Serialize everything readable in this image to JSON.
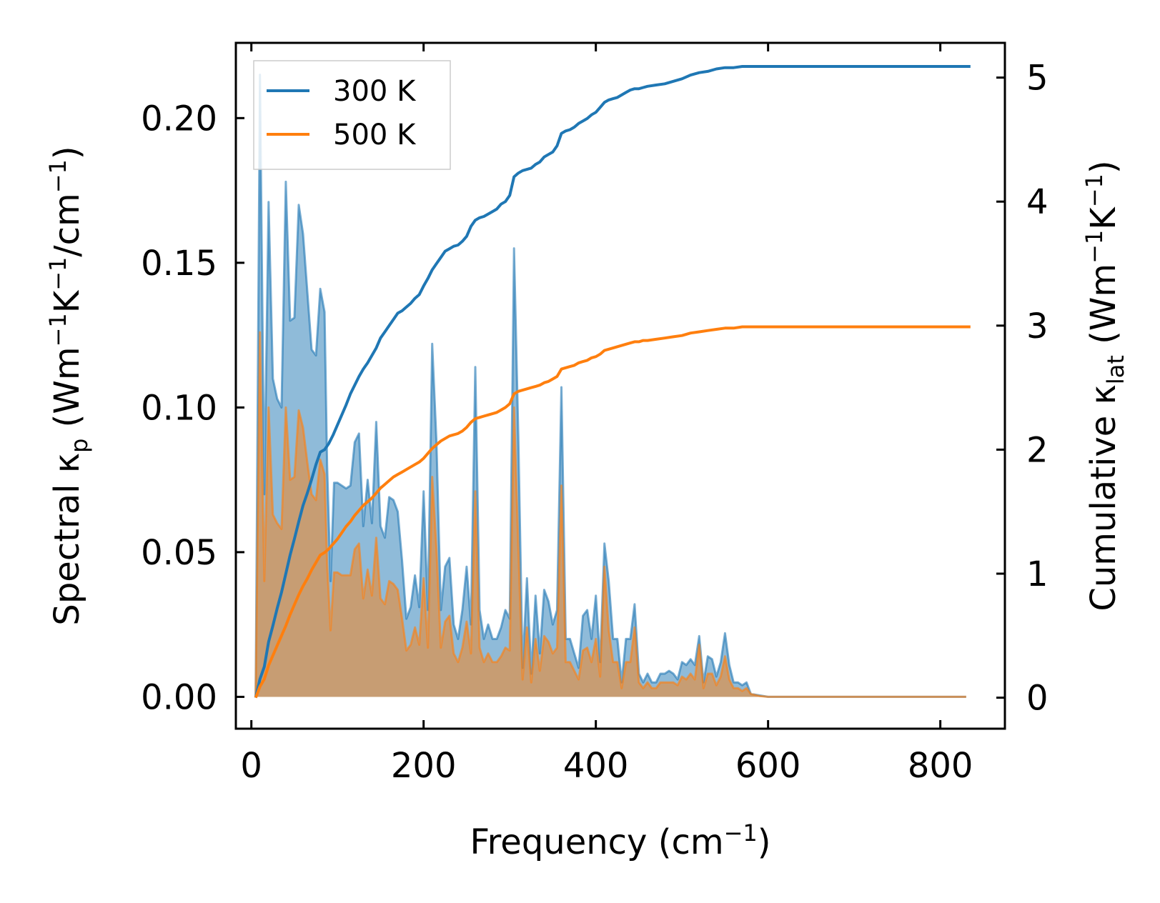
{
  "chart_data": {
    "type": "line+area",
    "xlabel": "Frequency (cm",
    "xlabel_sup": "−1",
    "xlabel_tail": ")",
    "ylabel_left": "Spectral κ",
    "ylabel_left_sub": "p",
    "ylabel_left_tail": " (Wm",
    "ylabel_left_sup1": "−1",
    "ylabel_left_mid": "K",
    "ylabel_left_sup2": "−1",
    "ylabel_left_mid2": "/cm",
    "ylabel_left_sup3": "−1",
    "ylabel_left_end": ")",
    "ylabel_right": "Cumulative κ",
    "ylabel_right_sub": "lat",
    "ylabel_right_tail": " (Wm",
    "ylabel_right_sup1": "−1",
    "ylabel_right_mid": "K",
    "ylabel_right_sup2": "−1",
    "ylabel_right_end": ")",
    "xlim": [
      -18,
      875
    ],
    "ylim_left": [
      -0.011,
      0.226
    ],
    "ylim_right": [
      -0.25,
      5.28
    ],
    "xticks": [
      0,
      200,
      400,
      600,
      800
    ],
    "xtick_labels": [
      "0",
      "200",
      "400",
      "600",
      "800"
    ],
    "yticks_left": [
      0.0,
      0.05,
      0.1,
      0.15,
      0.2
    ],
    "ytick_labels_left": [
      "0.00",
      "0.05",
      "0.10",
      "0.15",
      "0.20"
    ],
    "yticks_right": [
      0,
      1,
      2,
      3,
      4,
      5
    ],
    "ytick_labels_right": [
      "0",
      "1",
      "2",
      "3",
      "4",
      "5"
    ],
    "legend": {
      "placement": "top-left",
      "entries": [
        {
          "label": "300 K",
          "color": "#1f77b4"
        },
        {
          "label": "500 K",
          "color": "#ff7f0e"
        }
      ]
    },
    "series": [
      {
        "name": "300 K",
        "color": "#1f77b4",
        "spectral": {
          "x": [
            5,
            10,
            15,
            20,
            25,
            30,
            35,
            40,
            45,
            50,
            55,
            60,
            65,
            70,
            75,
            80,
            85,
            88,
            92,
            96,
            100,
            105,
            110,
            115,
            120,
            125,
            130,
            135,
            140,
            145,
            150,
            155,
            160,
            165,
            170,
            175,
            180,
            185,
            190,
            195,
            200,
            205,
            210,
            215,
            220,
            225,
            230,
            235,
            240,
            245,
            250,
            255,
            260,
            265,
            270,
            275,
            280,
            285,
            290,
            295,
            300,
            305,
            310,
            315,
            320,
            325,
            330,
            335,
            340,
            345,
            350,
            355,
            360,
            365,
            370,
            375,
            380,
            385,
            390,
            395,
            400,
            405,
            410,
            415,
            420,
            425,
            430,
            435,
            440,
            445,
            450,
            455,
            460,
            465,
            470,
            475,
            480,
            485,
            490,
            495,
            500,
            505,
            510,
            515,
            520,
            525,
            530,
            535,
            540,
            545,
            550,
            555,
            560,
            565,
            570,
            575,
            580,
            590,
            600,
            650,
            700,
            750,
            800,
            830
          ],
          "y": [
            0,
            0.215,
            0.07,
            0.171,
            0.11,
            0.103,
            0.1,
            0.178,
            0.13,
            0.131,
            0.17,
            0.16,
            0.14,
            0.12,
            0.118,
            0.141,
            0.133,
            0.08,
            0.04,
            0.074,
            0.074,
            0.073,
            0.072,
            0.073,
            0.088,
            0.091,
            0.059,
            0.075,
            0.06,
            0.095,
            0.059,
            0.055,
            0.069,
            0.068,
            0.064,
            0.047,
            0.027,
            0.031,
            0.042,
            0.031,
            0.071,
            0.03,
            0.122,
            0.088,
            0.03,
            0.045,
            0.048,
            0.025,
            0.02,
            0.03,
            0.045,
            0.025,
            0.114,
            0.03,
            0.02,
            0.025,
            0.02,
            0.02,
            0.024,
            0.03,
            0.027,
            0.155,
            0.09,
            0.01,
            0.041,
            0.008,
            0.035,
            0.015,
            0.037,
            0.033,
            0.025,
            0.03,
            0.107,
            0.02,
            0.02,
            0.015,
            0.01,
            0.028,
            0.03,
            0.02,
            0.035,
            0.012,
            0.053,
            0.04,
            0.02,
            0.02,
            0.005,
            0.02,
            0.02,
            0.032,
            0.008,
            0.005,
            0.008,
            0.005,
            0.005,
            0.008,
            0.008,
            0.009,
            0.008,
            0.006,
            0.012,
            0.011,
            0.013,
            0.011,
            0.021,
            0.005,
            0.014,
            0.013,
            0.007,
            0.012,
            0.022,
            0.011,
            0.005,
            0.005,
            0.004,
            0.005,
            0.001,
            0.0005,
            0,
            0,
            0,
            0,
            0,
            0
          ]
        },
        "cumulative": {
          "x": [
            5,
            10,
            15,
            20,
            25,
            30,
            35,
            40,
            45,
            50,
            55,
            60,
            65,
            70,
            75,
            80,
            85,
            90,
            95,
            100,
            105,
            110,
            115,
            120,
            125,
            130,
            135,
            140,
            145,
            150,
            155,
            160,
            165,
            170,
            175,
            180,
            185,
            190,
            195,
            200,
            205,
            210,
            215,
            220,
            225,
            230,
            235,
            240,
            245,
            250,
            255,
            260,
            265,
            270,
            275,
            280,
            285,
            290,
            295,
            300,
            305,
            310,
            315,
            320,
            325,
            330,
            335,
            340,
            345,
            350,
            355,
            360,
            365,
            370,
            375,
            380,
            385,
            390,
            395,
            400,
            405,
            410,
            415,
            420,
            425,
            430,
            435,
            440,
            445,
            450,
            455,
            460,
            470,
            480,
            490,
            500,
            510,
            520,
            530,
            540,
            550,
            560,
            570,
            580,
            600,
            650,
            700,
            750,
            800,
            835
          ],
          "y": [
            0,
            0.15,
            0.25,
            0.45,
            0.58,
            0.72,
            0.85,
            1.0,
            1.15,
            1.28,
            1.42,
            1.55,
            1.65,
            1.76,
            1.88,
            1.98,
            2.0,
            2.05,
            2.12,
            2.2,
            2.28,
            2.36,
            2.45,
            2.52,
            2.59,
            2.65,
            2.7,
            2.76,
            2.82,
            2.9,
            2.95,
            3.0,
            3.05,
            3.1,
            3.12,
            3.15,
            3.18,
            3.22,
            3.25,
            3.32,
            3.38,
            3.45,
            3.5,
            3.55,
            3.6,
            3.62,
            3.64,
            3.65,
            3.68,
            3.72,
            3.8,
            3.85,
            3.87,
            3.88,
            3.9,
            3.92,
            3.94,
            3.98,
            4.0,
            4.05,
            4.2,
            4.23,
            4.25,
            4.26,
            4.27,
            4.3,
            4.32,
            4.36,
            4.38,
            4.4,
            4.45,
            4.55,
            4.57,
            4.58,
            4.6,
            4.63,
            4.65,
            4.67,
            4.7,
            4.72,
            4.76,
            4.8,
            4.82,
            4.83,
            4.84,
            4.86,
            4.88,
            4.9,
            4.91,
            4.91,
            4.92,
            4.93,
            4.94,
            4.95,
            4.97,
            4.99,
            5.02,
            5.04,
            5.05,
            5.07,
            5.08,
            5.08,
            5.09,
            5.09,
            5.09,
            5.09,
            5.09,
            5.09,
            5.09,
            5.09
          ]
        }
      },
      {
        "name": "500 K",
        "color": "#ff7f0e",
        "spectral": {
          "x": [
            5,
            10,
            15,
            20,
            25,
            30,
            35,
            40,
            45,
            50,
            55,
            60,
            65,
            70,
            75,
            80,
            85,
            88,
            92,
            96,
            100,
            105,
            110,
            115,
            120,
            125,
            130,
            135,
            140,
            145,
            150,
            155,
            160,
            165,
            170,
            175,
            180,
            185,
            190,
            195,
            200,
            205,
            210,
            215,
            220,
            225,
            230,
            235,
            240,
            245,
            250,
            255,
            260,
            265,
            270,
            275,
            280,
            285,
            290,
            295,
            300,
            305,
            310,
            315,
            320,
            325,
            330,
            335,
            340,
            345,
            350,
            355,
            360,
            365,
            370,
            375,
            380,
            385,
            390,
            395,
            400,
            405,
            410,
            415,
            420,
            425,
            430,
            435,
            440,
            445,
            450,
            455,
            460,
            465,
            470,
            475,
            480,
            485,
            490,
            495,
            500,
            505,
            510,
            515,
            520,
            525,
            530,
            535,
            540,
            545,
            550,
            555,
            560,
            565,
            570,
            575,
            580,
            590,
            600,
            650,
            700,
            750,
            800,
            830
          ],
          "y": [
            0,
            0.126,
            0.04,
            0.1,
            0.063,
            0.06,
            0.058,
            0.1,
            0.075,
            0.076,
            0.099,
            0.093,
            0.081,
            0.07,
            0.068,
            0.082,
            0.077,
            0.046,
            0.023,
            0.043,
            0.043,
            0.042,
            0.042,
            0.042,
            0.051,
            0.053,
            0.034,
            0.044,
            0.035,
            0.055,
            0.034,
            0.032,
            0.04,
            0.039,
            0.037,
            0.027,
            0.016,
            0.018,
            0.024,
            0.018,
            0.041,
            0.017,
            0.076,
            0.051,
            0.017,
            0.026,
            0.028,
            0.015,
            0.012,
            0.017,
            0.026,
            0.015,
            0.071,
            0.017,
            0.012,
            0.015,
            0.012,
            0.012,
            0.014,
            0.017,
            0.016,
            0.1,
            0.052,
            0.006,
            0.024,
            0.005,
            0.02,
            0.009,
            0.021,
            0.019,
            0.015,
            0.017,
            0.073,
            0.012,
            0.012,
            0.009,
            0.006,
            0.016,
            0.017,
            0.012,
            0.02,
            0.007,
            0.045,
            0.023,
            0.012,
            0.012,
            0.003,
            0.012,
            0.012,
            0.024,
            0.005,
            0.003,
            0.005,
            0.003,
            0.003,
            0.005,
            0.005,
            0.005,
            0.005,
            0.004,
            0.007,
            0.006,
            0.008,
            0.006,
            0.018,
            0.003,
            0.008,
            0.008,
            0.004,
            0.007,
            0.014,
            0.006,
            0.003,
            0.003,
            0.002,
            0.003,
            0.001,
            0.0003,
            0,
            0,
            0,
            0,
            0,
            0
          ]
        },
        "cumulative": {
          "x": [
            5,
            10,
            15,
            20,
            25,
            30,
            35,
            40,
            45,
            50,
            55,
            60,
            65,
            70,
            75,
            80,
            85,
            90,
            95,
            100,
            105,
            110,
            115,
            120,
            125,
            130,
            135,
            140,
            145,
            150,
            155,
            160,
            165,
            170,
            175,
            180,
            185,
            190,
            195,
            200,
            205,
            210,
            215,
            220,
            225,
            230,
            235,
            240,
            245,
            250,
            255,
            260,
            265,
            270,
            275,
            280,
            285,
            290,
            295,
            300,
            305,
            310,
            315,
            320,
            325,
            330,
            335,
            340,
            345,
            350,
            355,
            360,
            365,
            370,
            375,
            380,
            385,
            390,
            395,
            400,
            405,
            410,
            415,
            420,
            425,
            430,
            435,
            440,
            445,
            450,
            455,
            460,
            470,
            480,
            490,
            500,
            510,
            520,
            530,
            540,
            550,
            560,
            570,
            580,
            600,
            650,
            700,
            750,
            800,
            835
          ],
          "y": [
            0,
            0.09,
            0.15,
            0.26,
            0.34,
            0.42,
            0.5,
            0.58,
            0.67,
            0.75,
            0.83,
            0.9,
            0.96,
            1.03,
            1.09,
            1.15,
            1.17,
            1.2,
            1.24,
            1.28,
            1.33,
            1.38,
            1.42,
            1.47,
            1.51,
            1.55,
            1.58,
            1.61,
            1.65,
            1.69,
            1.72,
            1.75,
            1.78,
            1.8,
            1.82,
            1.84,
            1.86,
            1.88,
            1.9,
            1.93,
            1.97,
            2.01,
            2.04,
            2.07,
            2.09,
            2.11,
            2.12,
            2.13,
            2.15,
            2.18,
            2.22,
            2.25,
            2.26,
            2.27,
            2.28,
            2.29,
            2.3,
            2.32,
            2.34,
            2.37,
            2.45,
            2.47,
            2.48,
            2.49,
            2.5,
            2.51,
            2.52,
            2.54,
            2.55,
            2.57,
            2.59,
            2.65,
            2.66,
            2.67,
            2.68,
            2.7,
            2.71,
            2.72,
            2.74,
            2.75,
            2.77,
            2.8,
            2.81,
            2.82,
            2.83,
            2.84,
            2.85,
            2.86,
            2.87,
            2.87,
            2.88,
            2.88,
            2.89,
            2.9,
            2.91,
            2.92,
            2.94,
            2.95,
            2.96,
            2.97,
            2.98,
            2.98,
            2.99,
            2.99,
            2.99,
            2.99,
            2.99,
            2.99,
            2.99,
            2.99
          ]
        }
      }
    ]
  }
}
